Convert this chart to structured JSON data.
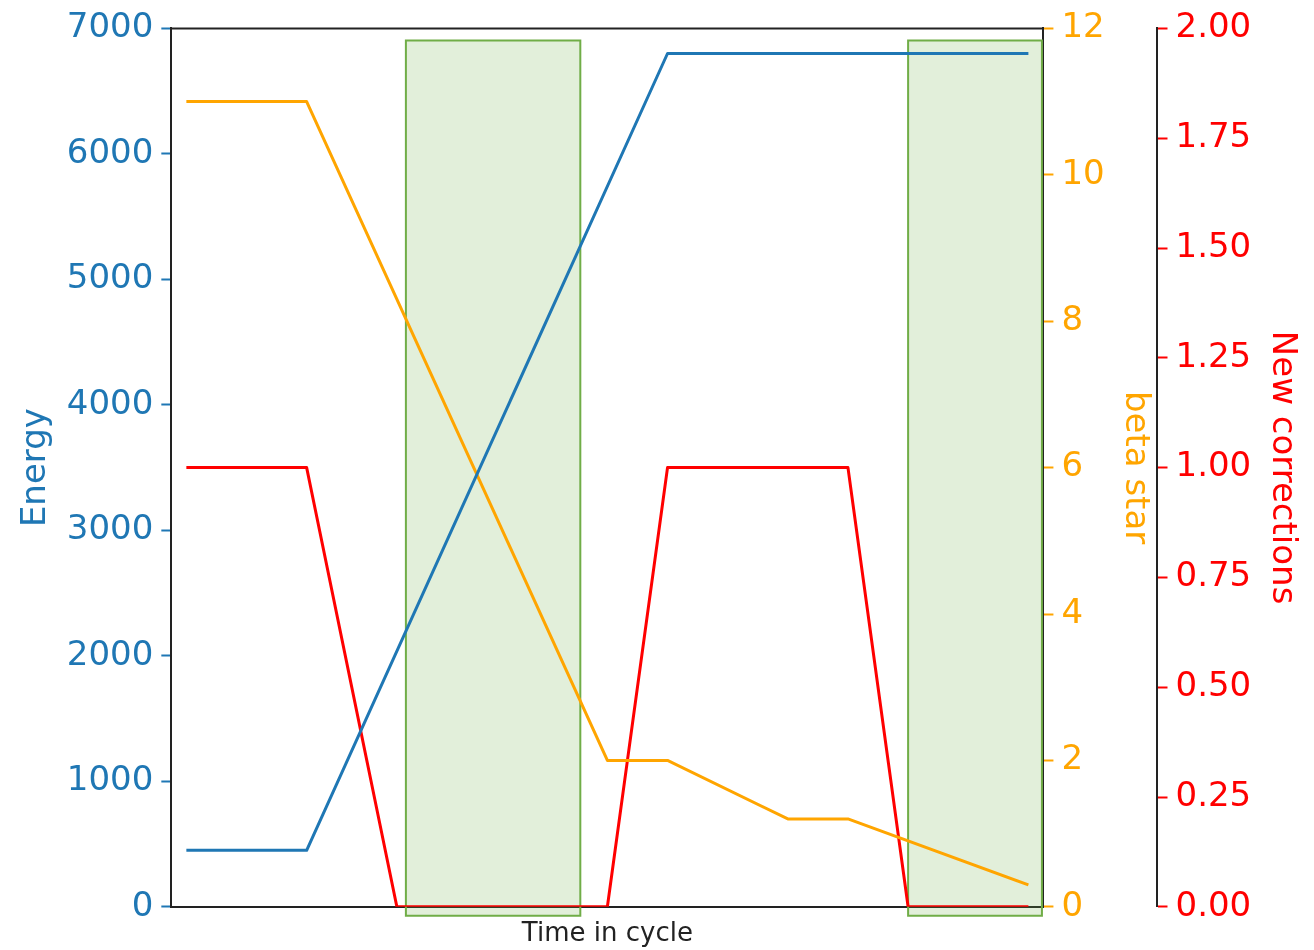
{
  "chart_data": {
    "type": "line",
    "xlabel": "Time in cycle",
    "ylabel": "Energy",
    "y2label": "beta star",
    "y3label": "New corrections",
    "categories": [
      null,
      null,
      null,
      null,
      null,
      null,
      null,
      null,
      null,
      null,
      null,
      null,
      null,
      null,
      null,
      null,
      null,
      null,
      null,
      null,
      null,
      null,
      null,
      null,
      null,
      null,
      null,
      null,
      null
    ],
    "ylim": [
      0,
      7000
    ],
    "yticks": [
      0,
      1000,
      2000,
      3000,
      4000,
      5000,
      6000,
      7000
    ],
    "y2lim": [
      0,
      12
    ],
    "y2ticks": [
      0,
      2,
      4,
      6,
      8,
      10,
      12
    ],
    "y3lim": [
      0,
      2
    ],
    "y3ticks": [
      {
        "value": 0,
        "label": "0.00"
      },
      {
        "value": 0.25,
        "label": "0.25"
      },
      {
        "value": 0.5,
        "label": "0.50"
      },
      {
        "value": 0.75,
        "label": "0.75"
      },
      {
        "value": 1,
        "label": "1.00"
      },
      {
        "value": 1.25,
        "label": "1.25"
      },
      {
        "value": 1.5,
        "label": "1.50"
      },
      {
        "value": 1.75,
        "label": "1.75"
      },
      {
        "value": 2,
        "label": "2.00"
      }
    ],
    "tick_labels": "y",
    "grid": false,
    "legend": false,
    "series": [
      {
        "color": "#1f77b4",
        "values": [
          450,
          null,
          null,
          null,
          450,
          null,
          null,
          null,
          null,
          null,
          null,
          null,
          null,
          null,
          null,
          null,
          6800,
          null,
          null,
          null,
          null,
          null,
          null,
          null,
          null,
          null,
          null,
          null,
          6800
        ]
      },
      {
        "color": "#ffa500",
        "axis": "y2",
        "values": [
          11,
          null,
          null,
          null,
          11,
          null,
          null,
          null,
          null,
          null,
          null,
          null,
          null,
          null,
          2,
          null,
          2,
          null,
          null,
          null,
          1.2,
          null,
          1.2,
          null,
          null,
          null,
          null,
          null,
          0.3
        ]
      },
      {
        "color": "#ff0000",
        "axis": "y3",
        "values": [
          1,
          null,
          null,
          null,
          1,
          null,
          null,
          0,
          null,
          null,
          null,
          null,
          null,
          null,
          0,
          null,
          1,
          null,
          null,
          null,
          null,
          null,
          1,
          null,
          0,
          null,
          null,
          null,
          0
        ]
      }
    ]
  }
}
